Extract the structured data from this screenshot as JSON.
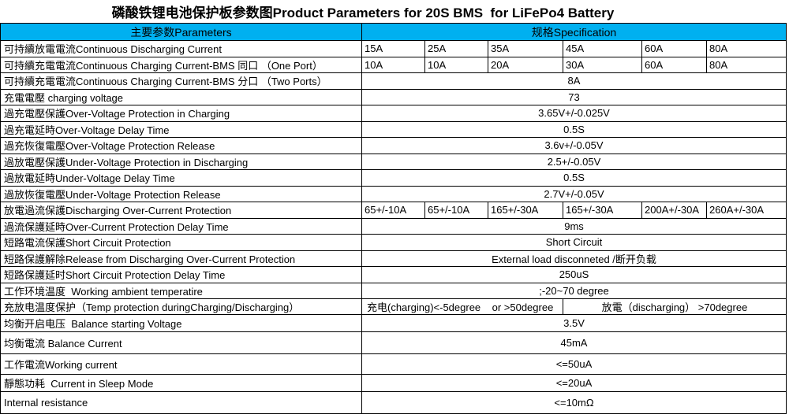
{
  "title": "磷酸铁锂电池保护板参数图Product Parameters for 20S BMS  for LiFePo4 Battery",
  "header": {
    "parameters": "主要参数Parameters",
    "specification": "规格Specification"
  },
  "colors": {
    "header_bg": "#00B0F0",
    "border": "#000000",
    "background": "#FFFFFF"
  },
  "rows": [
    {
      "type": "multi",
      "label": "可持續放電電流Continuous Discharging Current",
      "cells": [
        "15A",
        "25A",
        "35A",
        "45A",
        "60A",
        "80A"
      ]
    },
    {
      "type": "multi",
      "label": "可持續充電電流Continuous Charging Current-BMS 同口 （One Port）",
      "cells": [
        "10A",
        "10A",
        "20A",
        "30A",
        "60A",
        "80A"
      ]
    },
    {
      "type": "single",
      "label": "可持續充電電流Continuous Charging Current-BMS 分口 （Two Ports）",
      "value": "8A"
    },
    {
      "type": "single",
      "label": "充電電壓 charging voltage",
      "value": "73"
    },
    {
      "type": "single",
      "label": "過充電壓保護Over-Voltage Protection in Charging",
      "value": "3.65V+/-0.025V"
    },
    {
      "type": "single",
      "label": "過充電延時Over-Voltage Delay Time",
      "value": "0.5S"
    },
    {
      "type": "single",
      "label": "過充恢復電壓Over-Voltage Protection Release",
      "value": "3.6v+/-0.05V"
    },
    {
      "type": "single",
      "label": "過放電壓保護Under-Voltage Protection in Discharging",
      "value": "2.5+/-0.05V"
    },
    {
      "type": "single",
      "label": "過放電延時Under-Voltage Delay Time",
      "value": "0.5S"
    },
    {
      "type": "single",
      "label": "過放恢復電壓Under-Voltage Protection Release",
      "value": "2.7V+/-0.05V"
    },
    {
      "type": "multi",
      "label": "放電過流保護Discharging Over-Current Protection",
      "cells": [
        "65+/-10A",
        "65+/-10A",
        "165+/-30A",
        "165+/-30A",
        "200A+/-30A",
        "260A+/-30A"
      ]
    },
    {
      "type": "single",
      "label": "過流保護延時Over-Current Protection Delay Time",
      "value": "9ms"
    },
    {
      "type": "single",
      "label": "短路電流保護Short Circuit Protection",
      "value": "Short Circuit"
    },
    {
      "type": "single",
      "label": "短路保護解除Release from Discharging Over-Current Protection",
      "value": "External load disconneted /断开负载"
    },
    {
      "type": "single",
      "label": "短路保護延时Short Circuit Protection Delay Time",
      "value": "250uS"
    },
    {
      "type": "single",
      "label": "工作环境温度  Working ambient temperatire",
      "value": ";-20~70 degree"
    },
    {
      "type": "split",
      "label": "充放电温度保护（Temp protection duringCharging/Discharging）",
      "left": "充电(charging)<-5degree    or >50degree",
      "right": "放電（discharging） >70degree"
    },
    {
      "type": "single",
      "label": "均衡开启电压  Balance starting Voltage",
      "value": "3.5V"
    },
    {
      "type": "single",
      "label": "均衡電流 Balance Current",
      "value": "45mA"
    },
    {
      "type": "single",
      "label": "工作電流Working current",
      "value": "<=50uA"
    },
    {
      "type": "single",
      "label": "靜態功耗  Current in Sleep Mode",
      "value": "<=20uA"
    },
    {
      "type": "single",
      "label": "Internal resistance",
      "value": "<=10mΩ"
    }
  ]
}
